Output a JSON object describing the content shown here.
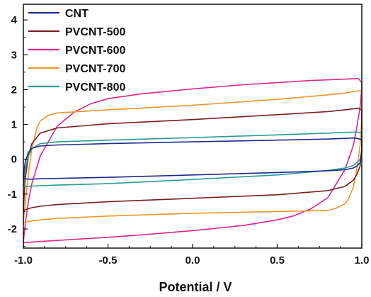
{
  "chart_data": {
    "type": "line",
    "title": "",
    "xlabel": "Potential / V",
    "ylabel": "",
    "xlim": [
      -1.0,
      1.0
    ],
    "ylim": [
      -2.55,
      4.45
    ],
    "xticks": [
      "-1.0",
      "-0.5",
      "0.0",
      "0.5",
      "1.0"
    ],
    "xtick_values": [
      -1.0,
      -0.5,
      0.0,
      0.5,
      1.0
    ],
    "yticks": [
      "-2",
      "-1",
      "0",
      "1",
      "2",
      "3",
      "4"
    ],
    "ytick_values": [
      -2,
      -1,
      0,
      1,
      2,
      3,
      4
    ],
    "grid": false,
    "legend_position": "top-left",
    "series": [
      {
        "name": "CNT",
        "color": "#1c2b8c",
        "x": [
          -1.0,
          -0.99,
          -0.97,
          -0.95,
          -0.9,
          -0.8,
          -0.5,
          0.0,
          0.5,
          0.8,
          0.9,
          0.95,
          0.97,
          0.99,
          1.0,
          1.0,
          0.99,
          0.97,
          0.95,
          0.9,
          0.8,
          0.5,
          0.0,
          -0.5,
          -0.8,
          -0.9,
          -0.95,
          -0.97,
          -0.99,
          -1.0,
          -1.0
        ],
        "y": [
          -0.55,
          -0.1,
          0.2,
          0.32,
          0.38,
          0.41,
          0.45,
          0.5,
          0.55,
          0.58,
          0.6,
          0.61,
          0.6,
          0.58,
          0.55,
          0.2,
          -0.1,
          -0.2,
          -0.25,
          -0.3,
          -0.33,
          -0.38,
          -0.45,
          -0.52,
          -0.55,
          -0.56,
          -0.57,
          -0.57,
          -0.56,
          -0.55,
          -0.55
        ]
      },
      {
        "name": "PVCNT-500",
        "color": "#7a1e1e",
        "x": [
          -1.0,
          -0.99,
          -0.97,
          -0.95,
          -0.9,
          -0.8,
          -0.5,
          0.0,
          0.5,
          0.8,
          0.9,
          0.95,
          0.97,
          0.99,
          1.0,
          1.0,
          0.99,
          0.97,
          0.95,
          0.9,
          0.8,
          0.5,
          0.0,
          -0.5,
          -0.8,
          -0.9,
          -0.95,
          -0.97,
          -0.99,
          -1.0,
          -1.0
        ],
        "y": [
          -1.48,
          -0.6,
          0.1,
          0.45,
          0.75,
          0.9,
          1.02,
          1.14,
          1.28,
          1.37,
          1.42,
          1.45,
          1.46,
          1.45,
          1.4,
          0.3,
          -0.2,
          -0.45,
          -0.6,
          -0.78,
          -0.9,
          -1.02,
          -1.12,
          -1.22,
          -1.3,
          -1.35,
          -1.39,
          -1.42,
          -1.45,
          -1.48,
          -1.48
        ]
      },
      {
        "name": "PVCNT-600",
        "color": "#e0248f",
        "x": [
          -1.0,
          -0.99,
          -0.97,
          -0.95,
          -0.9,
          -0.8,
          -0.7,
          -0.6,
          -0.5,
          -0.3,
          0.0,
          0.3,
          0.5,
          0.7,
          0.9,
          0.98,
          1.0,
          1.0,
          0.99,
          0.97,
          0.95,
          0.9,
          0.8,
          0.7,
          0.6,
          0.5,
          0.3,
          0.0,
          -0.3,
          -0.5,
          -0.7,
          -0.9,
          -0.98,
          -1.0,
          -1.0
        ],
        "y": [
          -2.4,
          -1.9,
          -1.2,
          -0.7,
          0.1,
          0.95,
          1.35,
          1.6,
          1.74,
          1.88,
          2.02,
          2.14,
          2.2,
          2.26,
          2.3,
          2.32,
          2.2,
          2.05,
          1.5,
          0.9,
          0.4,
          -0.3,
          -1.1,
          -1.42,
          -1.62,
          -1.74,
          -1.9,
          -2.05,
          -2.17,
          -2.24,
          -2.3,
          -2.36,
          -2.39,
          -2.4,
          -2.4
        ]
      },
      {
        "name": "PVCNT-700",
        "color": "#f0952a",
        "x": [
          -1.0,
          -0.99,
          -0.97,
          -0.95,
          -0.92,
          -0.9,
          -0.85,
          -0.8,
          -0.5,
          0.0,
          0.5,
          0.8,
          0.9,
          0.95,
          0.97,
          0.99,
          1.0,
          1.0,
          0.99,
          0.97,
          0.95,
          0.92,
          0.9,
          0.85,
          0.8,
          0.5,
          0.0,
          -0.5,
          -0.8,
          -0.9,
          -0.95,
          -0.97,
          -0.99,
          -1.0,
          -1.0
        ],
        "y": [
          -1.82,
          -1.3,
          -0.4,
          0.3,
          0.9,
          1.1,
          1.27,
          1.33,
          1.42,
          1.55,
          1.72,
          1.85,
          1.9,
          1.94,
          1.96,
          1.97,
          1.95,
          1.2,
          0.4,
          -0.3,
          -0.8,
          -1.15,
          -1.28,
          -1.4,
          -1.47,
          -1.5,
          -1.55,
          -1.63,
          -1.7,
          -1.74,
          -1.77,
          -1.79,
          -1.81,
          -1.82,
          -1.82
        ]
      },
      {
        "name": "PVCNT-800",
        "color": "#2a9a96",
        "x": [
          -1.0,
          -0.99,
          -0.97,
          -0.95,
          -0.9,
          -0.8,
          -0.5,
          0.0,
          0.5,
          0.8,
          0.9,
          0.95,
          0.97,
          0.99,
          1.0,
          1.0,
          0.99,
          0.97,
          0.95,
          0.9,
          0.8,
          0.5,
          0.0,
          -0.5,
          -0.8,
          -0.9,
          -0.95,
          -0.97,
          -0.99,
          -1.0,
          -1.0
        ],
        "y": [
          -0.78,
          -0.3,
          0.1,
          0.3,
          0.45,
          0.5,
          0.55,
          0.62,
          0.7,
          0.75,
          0.77,
          0.78,
          0.78,
          0.77,
          0.75,
          0.3,
          0.0,
          -0.1,
          -0.18,
          -0.25,
          -0.32,
          -0.45,
          -0.58,
          -0.7,
          -0.74,
          -0.76,
          -0.77,
          -0.78,
          -0.78,
          -0.78,
          -0.78
        ]
      }
    ]
  }
}
